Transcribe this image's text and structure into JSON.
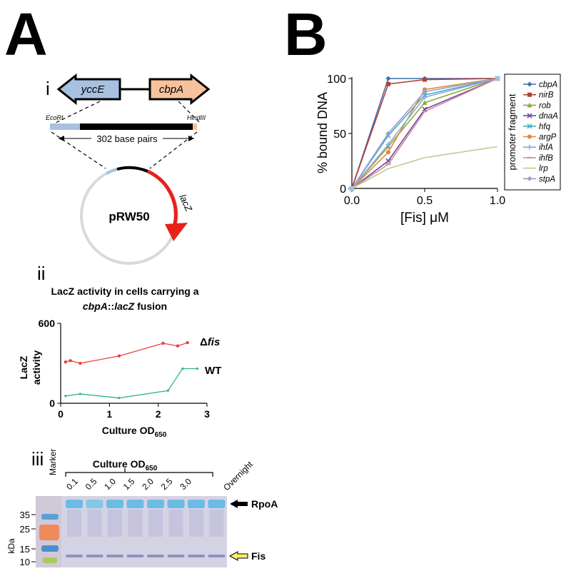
{
  "panels": {
    "a": "A",
    "b": "B"
  },
  "panel_a": {
    "sub_i": "i",
    "sub_ii": "ii",
    "sub_iii": "iii",
    "genes": {
      "left": "yccE",
      "right": "cbpA"
    },
    "fragment": {
      "left_site": "EcoRI",
      "right_site": "HindIII",
      "length": "302 base pairs"
    },
    "plasmid": {
      "name": "pRW50",
      "reporter": "lacZ"
    },
    "colors": {
      "yccE": "#a8c1e0",
      "cbpA": "#f6c19b",
      "lacZ": "#e8211a",
      "plasmid": "#d9d9d9"
    }
  },
  "lacz_chart": {
    "title_line1": "LacZ activity in cells carrying  a",
    "title_line2_italic": "cbpA",
    "title_line2_rest": "::",
    "title_line2_italic2": "lacZ",
    "title_line2_end": " fusion",
    "ylabel_line1": "LacZ",
    "ylabel_line2": "activity",
    "xlabel": "Culture OD",
    "xlabel_sub": "650",
    "label_dfis_delta": "Δ",
    "label_dfis": "fis",
    "label_wt": "WT"
  },
  "blot": {
    "marker_label": "Marker",
    "header": "Culture OD",
    "header_sub": "650",
    "overnight": "Overnight",
    "lanes": [
      "0.1",
      "0.5",
      "1.0",
      "1.5",
      "2.0",
      "2.5",
      "3.0"
    ],
    "kda_label": "kDa",
    "kda_ticks": [
      "35",
      "25",
      "15",
      "10"
    ],
    "rpoa": "RpoA",
    "fis": "Fis"
  },
  "fis_chart": {
    "ylabel": "% bound DNA",
    "xlabel": "[Fis] μM",
    "legend_title": "promoter fragment"
  },
  "chart_data": [
    {
      "type": "line",
      "title": "LacZ activity in cells carrying  a cbpA::lacZ fusion",
      "xlabel": "Culture OD650",
      "ylabel": "LacZ activity",
      "xlim": [
        0,
        3
      ],
      "ylim": [
        0,
        600
      ],
      "x_ticks": [
        "0",
        "1",
        "2",
        "3"
      ],
      "y_ticks": [
        "0",
        "600"
      ],
      "grid": false,
      "series": [
        {
          "name": "Δfis",
          "color": "#e8403a",
          "x": [
            0.1,
            0.2,
            0.4,
            1.2,
            2.1,
            2.4,
            2.6
          ],
          "y": [
            310,
            320,
            300,
            355,
            450,
            430,
            455
          ]
        },
        {
          "name": "WT",
          "color": "#2fb58a",
          "x": [
            0.1,
            0.4,
            1.2,
            2.2,
            2.5,
            2.8
          ],
          "y": [
            55,
            70,
            40,
            95,
            260,
            260
          ]
        }
      ]
    },
    {
      "type": "line",
      "xlabel": "[Fis] μM",
      "ylabel": "% bound DNA",
      "xlim": [
        0,
        1
      ],
      "ylim": [
        0,
        100
      ],
      "x_ticks": [
        "0.0",
        "0.5",
        "1.0"
      ],
      "y_ticks": [
        "0",
        "50",
        "100"
      ],
      "grid": false,
      "legend_position": "right",
      "legend_title": "promoter fragment",
      "x": [
        0,
        0.25,
        0.5,
        1.0
      ],
      "series": [
        {
          "name": "cbpA",
          "color": "#3a6fb5",
          "marker": "diamond",
          "values": [
            0,
            100,
            100,
            100
          ]
        },
        {
          "name": "nirB",
          "color": "#b5403a",
          "marker": "square",
          "values": [
            0,
            95,
            99,
            100
          ]
        },
        {
          "name": "rob",
          "color": "#8aab3a",
          "marker": "triangle",
          "values": [
            0,
            38,
            78,
            100
          ]
        },
        {
          "name": "dnaA",
          "color": "#6b4a9e",
          "marker": "x",
          "values": [
            0,
            25,
            72,
            100
          ]
        },
        {
          "name": "hfq",
          "color": "#3fb0c4",
          "marker": "x",
          "values": [
            0,
            48,
            85,
            100
          ]
        },
        {
          "name": "argP",
          "color": "#e08a3a",
          "marker": "circle",
          "values": [
            0,
            33,
            90,
            100
          ]
        },
        {
          "name": "ihfA",
          "color": "#8fa8d6",
          "marker": "plus",
          "values": [
            0,
            40,
            83,
            100
          ]
        },
        {
          "name": "ihfB",
          "color": "#d68aa3",
          "marker": "dash",
          "values": [
            0,
            22,
            70,
            100
          ]
        },
        {
          "name": "lrp",
          "color": "#b8cf8a",
          "marker": "none",
          "values": [
            0,
            18,
            28,
            38
          ]
        },
        {
          "name": "stpA",
          "color": "#9e9ad0",
          "marker": "diamond",
          "values": [
            0,
            50,
            88,
            100
          ]
        }
      ]
    }
  ]
}
